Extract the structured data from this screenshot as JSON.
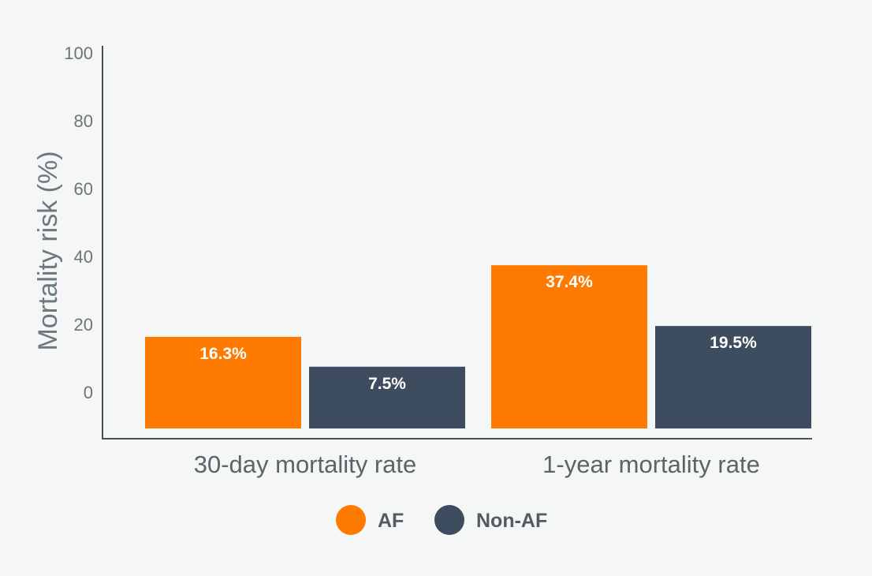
{
  "chart_data": {
    "type": "bar",
    "categories": [
      "30-day mortality rate",
      "1-year mortality rate"
    ],
    "series": [
      {
        "name": "AF",
        "color": "#ff7a00",
        "values": [
          16.3,
          37.4
        ],
        "data_labels": [
          "16.3%",
          "37.4%"
        ]
      },
      {
        "name": "Non-AF",
        "color": "#3d4c5e",
        "values": [
          7.5,
          19.5
        ],
        "data_labels": [
          "7.5%",
          "19.5%"
        ]
      }
    ],
    "title": "",
    "xlabel": "",
    "ylabel": "Mortality risk (%)",
    "ylim": [
      0,
      100
    ],
    "yticks": [
      "0",
      "20",
      "40",
      "60",
      "80",
      "100"
    ],
    "grid": false,
    "legend_position": "bottom-center"
  }
}
